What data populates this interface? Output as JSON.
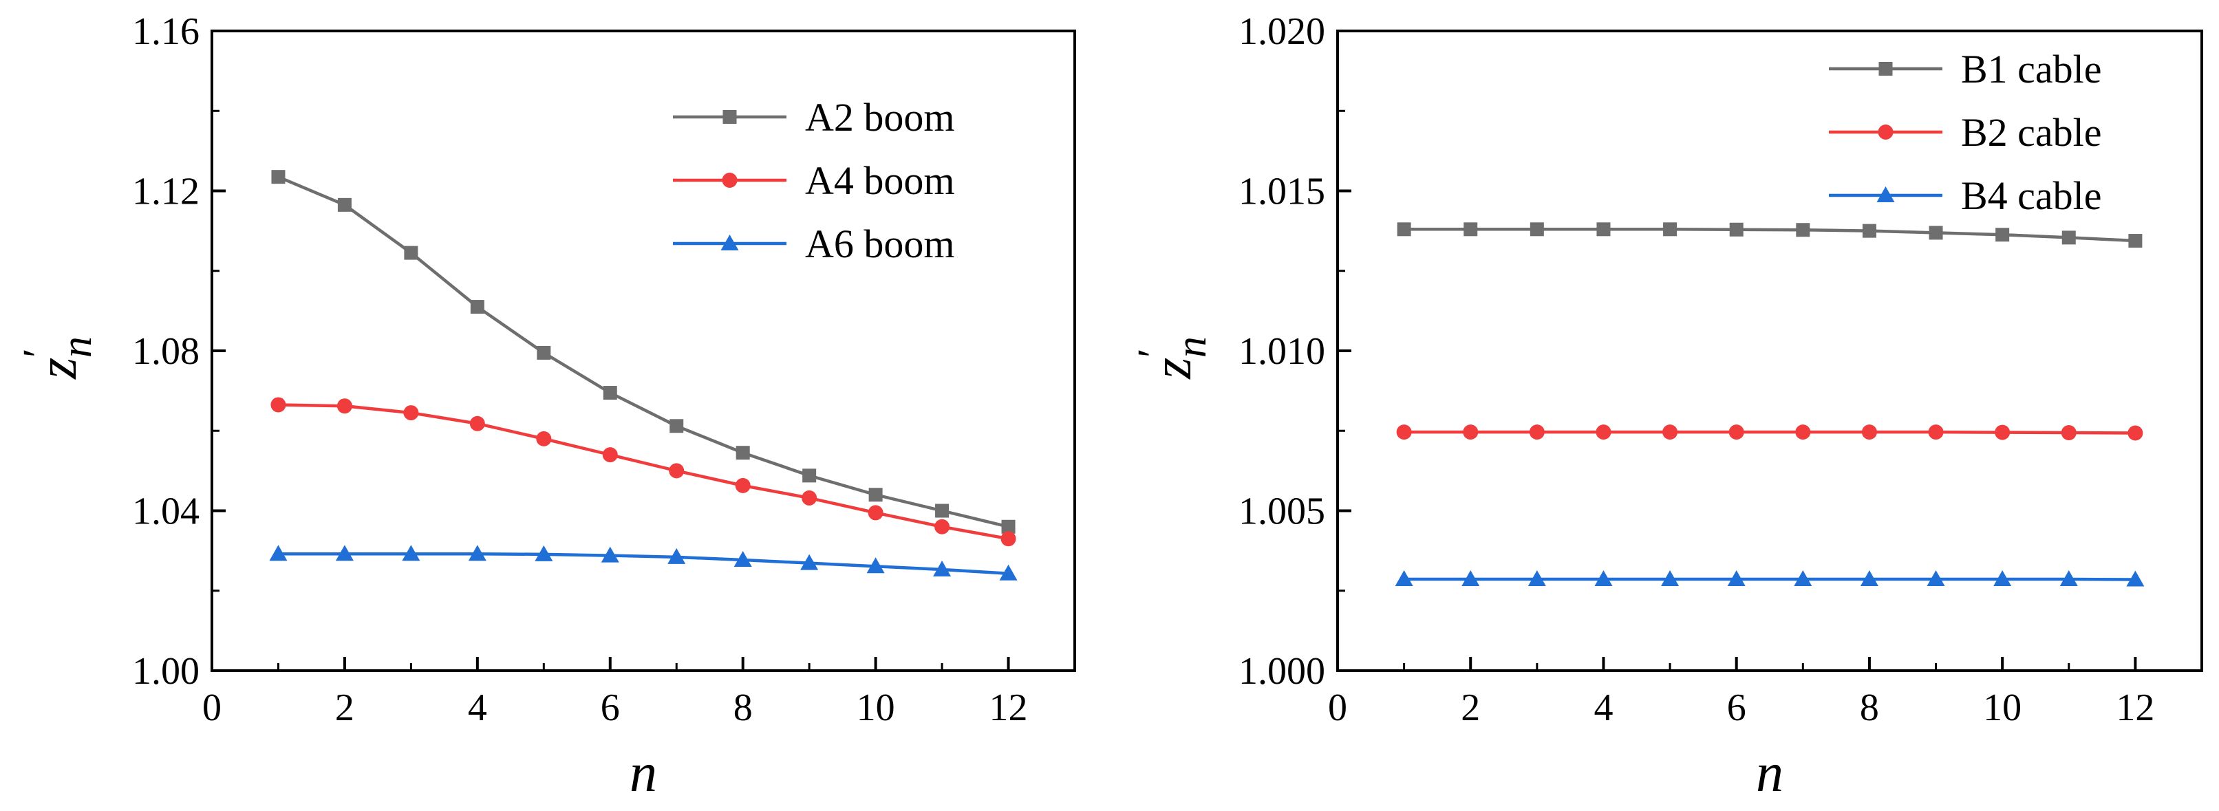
{
  "chart_data": [
    {
      "type": "line",
      "xlabel": "n",
      "ylabel": "z",
      "ylabel_prime": "′",
      "ylabel_sub": "n",
      "xlim": [
        0,
        13
      ],
      "ylim": [
        1.0,
        1.16
      ],
      "xticks": [
        0,
        2,
        4,
        6,
        8,
        10,
        12
      ],
      "yticks": [
        1.0,
        1.04,
        1.08,
        1.12,
        1.16
      ],
      "ytick_labels": [
        "1.00",
        "1.04",
        "1.08",
        "1.12",
        "1.16"
      ],
      "grid": false,
      "legend_position": "top-right",
      "x": [
        1,
        2,
        3,
        4,
        5,
        6,
        7,
        8,
        9,
        10,
        11,
        12
      ],
      "series": [
        {
          "name": "A2 boom",
          "color": "#6e6e6e",
          "marker": "square",
          "values": [
            1.1235,
            1.1165,
            1.1045,
            1.091,
            1.0795,
            1.0695,
            1.0612,
            1.0545,
            1.0488,
            1.044,
            1.04,
            1.036
          ]
        },
        {
          "name": "A4 boom",
          "color": "#f03c3c",
          "marker": "circle",
          "values": [
            1.0665,
            1.0662,
            1.0645,
            1.0618,
            1.058,
            1.054,
            1.05,
            1.0463,
            1.0432,
            1.0395,
            1.036,
            1.033
          ]
        },
        {
          "name": "A6 boom",
          "color": "#1f6fd6",
          "marker": "triangle",
          "values": [
            1.0292,
            1.0292,
            1.0292,
            1.0292,
            1.0291,
            1.0288,
            1.0284,
            1.0277,
            1.0269,
            1.0261,
            1.0253,
            1.0243
          ]
        }
      ]
    },
    {
      "type": "line",
      "xlabel": "n",
      "ylabel": "z",
      "ylabel_prime": "′",
      "ylabel_sub": "n",
      "xlim": [
        0,
        13
      ],
      "ylim": [
        1.0,
        1.02
      ],
      "xticks": [
        0,
        2,
        4,
        6,
        8,
        10,
        12
      ],
      "yticks": [
        1.0,
        1.005,
        1.01,
        1.015,
        1.02
      ],
      "ytick_labels": [
        "1.000",
        "1.005",
        "1.010",
        "1.015",
        "1.020"
      ],
      "grid": false,
      "legend_position": "top-right",
      "x": [
        1,
        2,
        3,
        4,
        5,
        6,
        7,
        8,
        9,
        10,
        11,
        12
      ],
      "series": [
        {
          "name": "B1 cable",
          "color": "#6e6e6e",
          "marker": "square",
          "values": [
            1.0138,
            1.0138,
            1.0138,
            1.0138,
            1.0138,
            1.01379,
            1.01378,
            1.01375,
            1.01369,
            1.01363,
            1.01354,
            1.01344
          ]
        },
        {
          "name": "B2 cable",
          "color": "#f03c3c",
          "marker": "circle",
          "values": [
            1.00746,
            1.00746,
            1.00746,
            1.00746,
            1.00746,
            1.00746,
            1.00746,
            1.00746,
            1.00746,
            1.00745,
            1.00744,
            1.00743
          ]
        },
        {
          "name": "B4 cable",
          "color": "#1f6fd6",
          "marker": "triangle",
          "values": [
            1.00286,
            1.00286,
            1.00286,
            1.00286,
            1.00286,
            1.00286,
            1.00286,
            1.00286,
            1.00286,
            1.00286,
            1.00286,
            1.00285
          ]
        }
      ]
    }
  ]
}
